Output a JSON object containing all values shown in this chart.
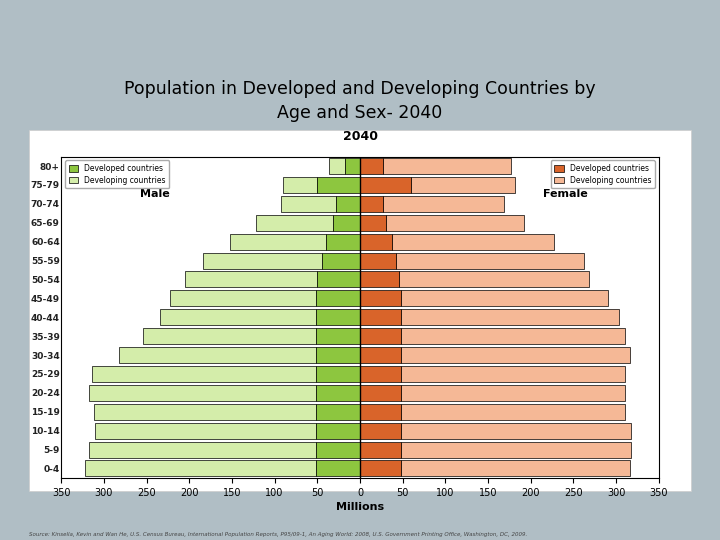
{
  "title": "Population in Developed and Developing Countries by\nAge and Sex- 2040",
  "subtitle": "2040",
  "source_text": "Source: Kinsella, Kevin and Wan He, U.S. Census Bureau, International Population Reports, P95/09-1, An Aging World: 2008, U.S. Government Printing Office, Washington, DC, 2009.",
  "age_groups": [
    "0-4",
    "5-9",
    "10-14",
    "15-19",
    "20-24",
    "25-29",
    "30-34",
    "35-39",
    "40-44",
    "45-49",
    "50-54",
    "55-59",
    "60-64",
    "65-69",
    "70-74",
    "75-79",
    "80+"
  ],
  "male_developed": [
    52,
    52,
    52,
    52,
    52,
    52,
    52,
    52,
    52,
    52,
    50,
    44,
    40,
    32,
    28,
    50,
    18
  ],
  "male_developing": [
    270,
    265,
    258,
    260,
    265,
    262,
    230,
    202,
    182,
    170,
    155,
    140,
    112,
    90,
    65,
    40,
    18
  ],
  "female_developed": [
    48,
    48,
    48,
    48,
    48,
    48,
    48,
    48,
    48,
    48,
    46,
    42,
    37,
    30,
    27,
    60,
    27
  ],
  "female_developing": [
    268,
    270,
    270,
    262,
    262,
    262,
    268,
    262,
    255,
    242,
    222,
    220,
    190,
    162,
    142,
    122,
    150
  ],
  "male_dev_color": "#8dc63f",
  "male_devel_color": "#d4edaa",
  "female_dev_color": "#d9642a",
  "female_devel_color": "#f5b896",
  "bg_color": "#b0bec5",
  "chart_bg": "#ffffff",
  "xlim": 350,
  "bar_height": 0.85,
  "xlabel": "Millions"
}
